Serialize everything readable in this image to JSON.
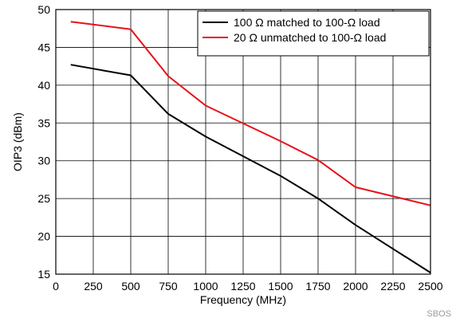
{
  "chart_data": {
    "type": "line",
    "xlabel": "Frequency (MHz)",
    "ylabel": "OIP3 (dBm)",
    "xlim": [
      0,
      2500
    ],
    "ylim": [
      15,
      50
    ],
    "xticks": [
      0,
      250,
      500,
      750,
      1000,
      1250,
      1500,
      1750,
      2000,
      2250,
      2500
    ],
    "yticks": [
      15,
      20,
      25,
      30,
      35,
      40,
      45,
      50
    ],
    "grid": true,
    "legend_position": "top-right",
    "series": [
      {
        "name": "100 Ω matched to 100-Ω load",
        "color": "#000000",
        "x": [
          100,
          500,
          750,
          1000,
          1500,
          1750,
          2000,
          2500
        ],
        "y": [
          42.7,
          41.3,
          36.2,
          33.2,
          28.0,
          25.0,
          21.5,
          15.2
        ]
      },
      {
        "name": "20 Ω unmatched to 100-Ω load",
        "color": "#e8101a",
        "x": [
          100,
          500,
          750,
          1000,
          1500,
          1750,
          2000,
          2500
        ],
        "y": [
          48.4,
          47.4,
          41.2,
          37.3,
          32.6,
          30.1,
          26.5,
          24.1
        ]
      }
    ]
  },
  "corner_tag": "SBOS"
}
